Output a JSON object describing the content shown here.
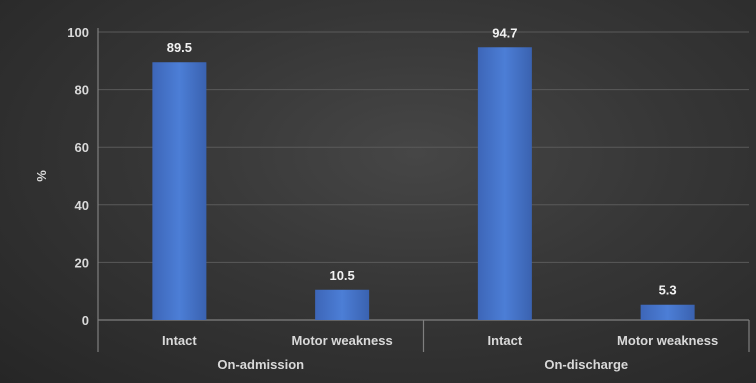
{
  "chart_data": {
    "type": "bar",
    "title": "",
    "xlabel": "",
    "ylabel": "%",
    "ylim": [
      0,
      100
    ],
    "yticks": [
      0,
      20,
      40,
      60,
      80,
      100
    ],
    "grid": true,
    "legend": "none",
    "bar_color": "#4472c4",
    "background": "#3a3a3a",
    "groups": [
      {
        "label": "On-admission",
        "categories": [
          "Intact",
          "Motor weakness"
        ],
        "values": [
          89.5,
          10.5
        ]
      },
      {
        "label": "On-discharge",
        "categories": [
          "Intact",
          "Motor weakness"
        ],
        "values": [
          94.7,
          5.3
        ]
      }
    ]
  }
}
